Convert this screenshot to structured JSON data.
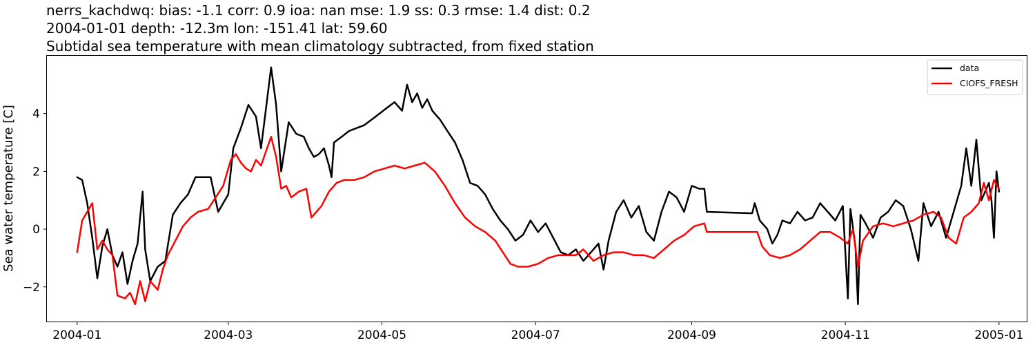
{
  "chart_data": {
    "type": "line",
    "title_lines": [
      "nerrs_kachdwq: bias: -1.1  corr: 0.9  ioa: nan  mse: 1.9  ss: 0.3  rmse: 1.4  dist: 0.2",
      "2004-01-01 depth: -12.3m lon: -151.41 lat: 59.60",
      "Subtidal sea temperature with mean climatology subtracted, from fixed station"
    ],
    "xlabel": "",
    "ylabel": "Sea water temperature [C]",
    "xlim": [
      "2003-12-20",
      "2005-01-12"
    ],
    "ylim": [
      -3.2,
      6.0
    ],
    "x_ticks": [
      "2004-01",
      "2004-03",
      "2004-05",
      "2004-07",
      "2004-09",
      "2004-11",
      "2005-01"
    ],
    "y_ticks": [
      -2,
      0,
      2,
      4
    ],
    "y_tick_labels": [
      "−2",
      "0",
      "2",
      "4"
    ],
    "grid": false,
    "legend_position": "top-right",
    "series": [
      {
        "name": "data",
        "color": "#000000",
        "points": [
          [
            "2004-01-01",
            1.8
          ],
          [
            "2004-01-03",
            1.7
          ],
          [
            "2004-01-05",
            0.9
          ],
          [
            "2004-01-07",
            -0.3
          ],
          [
            "2004-01-09",
            -1.7
          ],
          [
            "2004-01-11",
            -0.6
          ],
          [
            "2004-01-13",
            0.0
          ],
          [
            "2004-01-15",
            -0.9
          ],
          [
            "2004-01-17",
            -1.3
          ],
          [
            "2004-01-19",
            -0.8
          ],
          [
            "2004-01-21",
            -1.9
          ],
          [
            "2004-01-23",
            -1.1
          ],
          [
            "2004-01-25",
            -0.5
          ],
          [
            "2004-01-27",
            1.3
          ],
          [
            "2004-01-28",
            -0.7
          ],
          [
            "2004-01-30",
            -1.8
          ],
          [
            "2004-02-02",
            -1.3
          ],
          [
            "2004-02-05",
            -1.1
          ],
          [
            "2004-02-08",
            0.5
          ],
          [
            "2004-02-11",
            0.9
          ],
          [
            "2004-02-14",
            1.2
          ],
          [
            "2004-02-17",
            1.8
          ],
          [
            "2004-02-20",
            1.8
          ],
          [
            "2004-02-23",
            1.8
          ],
          [
            "2004-02-26",
            0.6
          ],
          [
            "2004-03-01",
            1.2
          ],
          [
            "2004-03-03",
            2.8
          ],
          [
            "2004-03-06",
            3.5
          ],
          [
            "2004-03-09",
            4.3
          ],
          [
            "2004-03-12",
            3.9
          ],
          [
            "2004-03-14",
            2.8
          ],
          [
            "2004-03-16",
            4.2
          ],
          [
            "2004-03-18",
            5.6
          ],
          [
            "2004-03-20",
            4.3
          ],
          [
            "2004-03-22",
            2.0
          ],
          [
            "2004-03-25",
            3.7
          ],
          [
            "2004-03-28",
            3.3
          ],
          [
            "2004-03-31",
            3.2
          ],
          [
            "2004-04-02",
            2.8
          ],
          [
            "2004-04-04",
            2.5
          ],
          [
            "2004-04-06",
            2.6
          ],
          [
            "2004-04-08",
            2.8
          ],
          [
            "2004-04-10",
            2.2
          ],
          [
            "2004-04-11",
            1.8
          ],
          [
            "2004-04-12",
            3.0
          ],
          [
            "2004-04-15",
            3.2
          ],
          [
            "2004-04-18",
            3.4
          ],
          [
            "2004-04-21",
            3.5
          ],
          [
            "2004-04-24",
            3.6
          ],
          [
            "2004-04-27",
            3.8
          ],
          [
            "2004-04-30",
            4.0
          ],
          [
            "2004-05-03",
            4.2
          ],
          [
            "2004-05-06",
            4.4
          ],
          [
            "2004-05-09",
            4.1
          ],
          [
            "2004-05-11",
            5.0
          ],
          [
            "2004-05-13",
            4.4
          ],
          [
            "2004-05-15",
            4.7
          ],
          [
            "2004-05-17",
            4.2
          ],
          [
            "2004-05-19",
            4.5
          ],
          [
            "2004-05-21",
            4.1
          ],
          [
            "2004-05-24",
            3.8
          ],
          [
            "2004-05-27",
            3.4
          ],
          [
            "2004-05-30",
            3.0
          ],
          [
            "2004-06-02",
            2.4
          ],
          [
            "2004-06-05",
            1.6
          ],
          [
            "2004-06-08",
            1.5
          ],
          [
            "2004-06-11",
            1.2
          ],
          [
            "2004-06-14",
            0.7
          ],
          [
            "2004-06-17",
            0.3
          ],
          [
            "2004-06-20",
            0.0
          ],
          [
            "2004-06-23",
            -0.4
          ],
          [
            "2004-06-26",
            -0.2
          ],
          [
            "2004-06-29",
            0.3
          ],
          [
            "2004-07-02",
            -0.1
          ],
          [
            "2004-07-05",
            0.2
          ],
          [
            "2004-07-08",
            -0.3
          ],
          [
            "2004-07-11",
            -0.8
          ],
          [
            "2004-07-14",
            -0.9
          ],
          [
            "2004-07-17",
            -0.7
          ],
          [
            "2004-07-20",
            -1.1
          ],
          [
            "2004-07-23",
            -0.8
          ],
          [
            "2004-07-26",
            -0.5
          ],
          [
            "2004-07-28",
            -1.4
          ],
          [
            "2004-07-30",
            -0.4
          ],
          [
            "2004-08-02",
            0.6
          ],
          [
            "2004-08-05",
            1.0
          ],
          [
            "2004-08-08",
            0.4
          ],
          [
            "2004-08-11",
            0.8
          ],
          [
            "2004-08-14",
            -0.1
          ],
          [
            "2004-08-17",
            -0.4
          ],
          [
            "2004-08-20",
            0.6
          ],
          [
            "2004-08-23",
            1.3
          ],
          [
            "2004-08-26",
            1.1
          ],
          [
            "2004-08-29",
            0.6
          ],
          [
            "2004-09-01",
            1.5
          ],
          [
            "2004-09-04",
            1.4
          ],
          [
            "2004-09-06",
            1.4
          ],
          [
            "2004-09-07",
            0.6
          ],
          [
            "2004-09-25",
            0.55
          ],
          [
            "2004-09-26",
            0.9
          ],
          [
            "2004-09-28",
            0.3
          ],
          [
            "2004-10-01",
            0.0
          ],
          [
            "2004-10-03",
            -0.5
          ],
          [
            "2004-10-05",
            -0.2
          ],
          [
            "2004-10-07",
            0.3
          ],
          [
            "2004-10-10",
            0.2
          ],
          [
            "2004-10-13",
            0.6
          ],
          [
            "2004-10-16",
            0.3
          ],
          [
            "2004-10-19",
            0.4
          ],
          [
            "2004-10-22",
            0.9
          ],
          [
            "2004-10-25",
            0.6
          ],
          [
            "2004-10-28",
            0.3
          ],
          [
            "2004-10-31",
            0.8
          ],
          [
            "2004-11-02",
            -2.4
          ],
          [
            "2004-11-03",
            0.7
          ],
          [
            "2004-11-05",
            -0.6
          ],
          [
            "2004-11-06",
            -2.6
          ],
          [
            "2004-11-07",
            0.5
          ],
          [
            "2004-11-09",
            0.2
          ],
          [
            "2004-11-12",
            -0.3
          ],
          [
            "2004-11-15",
            0.4
          ],
          [
            "2004-11-18",
            0.6
          ],
          [
            "2004-11-21",
            1.0
          ],
          [
            "2004-11-24",
            0.8
          ],
          [
            "2004-11-27",
            0.0
          ],
          [
            "2004-11-30",
            -1.1
          ],
          [
            "2004-12-02",
            0.9
          ],
          [
            "2004-12-05",
            0.1
          ],
          [
            "2004-12-08",
            0.6
          ],
          [
            "2004-12-11",
            -0.3
          ],
          [
            "2004-12-14",
            0.6
          ],
          [
            "2004-12-17",
            1.5
          ],
          [
            "2004-12-19",
            2.8
          ],
          [
            "2004-12-21",
            1.5
          ],
          [
            "2004-12-23",
            3.1
          ],
          [
            "2004-12-25",
            1.0
          ],
          [
            "2004-12-28",
            1.6
          ],
          [
            "2004-12-29",
            1.0
          ],
          [
            "2004-12-30",
            -0.3
          ],
          [
            "2004-12-31",
            2.0
          ],
          [
            "2005-01-01",
            1.3
          ]
        ]
      },
      {
        "name": "CIOFS_FRESH",
        "color": "#ff0000",
        "points": [
          [
            "2004-01-01",
            -0.8
          ],
          [
            "2004-01-03",
            0.3
          ],
          [
            "2004-01-05",
            0.6
          ],
          [
            "2004-01-07",
            0.9
          ],
          [
            "2004-01-09",
            -0.7
          ],
          [
            "2004-01-11",
            -0.4
          ],
          [
            "2004-01-13",
            -0.7
          ],
          [
            "2004-01-15",
            -0.9
          ],
          [
            "2004-01-17",
            -2.3
          ],
          [
            "2004-01-20",
            -2.4
          ],
          [
            "2004-01-22",
            -2.2
          ],
          [
            "2004-01-24",
            -2.6
          ],
          [
            "2004-01-26",
            -1.8
          ],
          [
            "2004-01-28",
            -2.5
          ],
          [
            "2004-01-30",
            -1.8
          ],
          [
            "2004-02-02",
            -2.1
          ],
          [
            "2004-02-04",
            -1.4
          ],
          [
            "2004-02-06",
            -0.9
          ],
          [
            "2004-02-09",
            -0.4
          ],
          [
            "2004-02-12",
            0.1
          ],
          [
            "2004-02-15",
            0.4
          ],
          [
            "2004-02-18",
            0.6
          ],
          [
            "2004-02-22",
            0.7
          ],
          [
            "2004-02-25",
            1.1
          ],
          [
            "2004-02-28",
            1.5
          ],
          [
            "2004-03-02",
            2.4
          ],
          [
            "2004-03-04",
            2.6
          ],
          [
            "2004-03-06",
            2.3
          ],
          [
            "2004-03-08",
            2.1
          ],
          [
            "2004-03-10",
            2.0
          ],
          [
            "2004-03-12",
            2.4
          ],
          [
            "2004-03-14",
            2.2
          ],
          [
            "2004-03-16",
            2.7
          ],
          [
            "2004-03-18",
            3.2
          ],
          [
            "2004-03-20",
            2.5
          ],
          [
            "2004-03-22",
            1.4
          ],
          [
            "2004-03-24",
            1.5
          ],
          [
            "2004-03-26",
            1.1
          ],
          [
            "2004-03-29",
            1.3
          ],
          [
            "2004-04-01",
            1.4
          ],
          [
            "2004-04-03",
            0.4
          ],
          [
            "2004-04-05",
            0.6
          ],
          [
            "2004-04-07",
            0.8
          ],
          [
            "2004-04-10",
            1.3
          ],
          [
            "2004-04-13",
            1.6
          ],
          [
            "2004-04-16",
            1.7
          ],
          [
            "2004-04-20",
            1.7
          ],
          [
            "2004-04-24",
            1.8
          ],
          [
            "2004-04-28",
            2.0
          ],
          [
            "2004-05-02",
            2.1
          ],
          [
            "2004-05-06",
            2.2
          ],
          [
            "2004-05-10",
            2.1
          ],
          [
            "2004-05-14",
            2.2
          ],
          [
            "2004-05-18",
            2.3
          ],
          [
            "2004-05-22",
            2.0
          ],
          [
            "2004-05-26",
            1.5
          ],
          [
            "2004-05-30",
            0.9
          ],
          [
            "2004-06-03",
            0.4
          ],
          [
            "2004-06-07",
            0.1
          ],
          [
            "2004-06-11",
            -0.1
          ],
          [
            "2004-06-15",
            -0.4
          ],
          [
            "2004-06-18",
            -0.8
          ],
          [
            "2004-06-21",
            -1.2
          ],
          [
            "2004-06-24",
            -1.3
          ],
          [
            "2004-06-28",
            -1.3
          ],
          [
            "2004-07-02",
            -1.2
          ],
          [
            "2004-07-06",
            -1.0
          ],
          [
            "2004-07-10",
            -0.9
          ],
          [
            "2004-07-14",
            -0.9
          ],
          [
            "2004-07-17",
            -0.9
          ],
          [
            "2004-07-20",
            -0.7
          ],
          [
            "2004-07-24",
            -1.1
          ],
          [
            "2004-07-28",
            -0.9
          ],
          [
            "2004-08-01",
            -0.8
          ],
          [
            "2004-08-05",
            -0.8
          ],
          [
            "2004-08-09",
            -0.9
          ],
          [
            "2004-08-13",
            -0.9
          ],
          [
            "2004-08-17",
            -1.0
          ],
          [
            "2004-08-21",
            -0.7
          ],
          [
            "2004-08-25",
            -0.4
          ],
          [
            "2004-08-29",
            -0.2
          ],
          [
            "2004-09-02",
            0.1
          ],
          [
            "2004-09-06",
            0.2
          ],
          [
            "2004-09-07",
            -0.1
          ],
          [
            "2004-09-27",
            -0.1
          ],
          [
            "2004-09-29",
            -0.6
          ],
          [
            "2004-10-02",
            -0.9
          ],
          [
            "2004-10-06",
            -1.0
          ],
          [
            "2004-10-10",
            -0.9
          ],
          [
            "2004-10-14",
            -0.7
          ],
          [
            "2004-10-18",
            -0.4
          ],
          [
            "2004-10-22",
            -0.1
          ],
          [
            "2004-10-26",
            -0.1
          ],
          [
            "2004-10-30",
            -0.3
          ],
          [
            "2004-11-02",
            -0.5
          ],
          [
            "2004-11-04",
            0.0
          ],
          [
            "2004-11-06",
            -1.3
          ],
          [
            "2004-11-08",
            -0.4
          ],
          [
            "2004-11-12",
            0.1
          ],
          [
            "2004-11-16",
            0.2
          ],
          [
            "2004-11-20",
            0.1
          ],
          [
            "2004-11-24",
            0.2
          ],
          [
            "2004-11-28",
            0.3
          ],
          [
            "2004-12-02",
            0.5
          ],
          [
            "2004-12-06",
            0.6
          ],
          [
            "2004-12-09",
            0.4
          ],
          [
            "2004-12-12",
            -0.3
          ],
          [
            "2004-12-15",
            -0.5
          ],
          [
            "2004-12-18",
            0.4
          ],
          [
            "2004-12-21",
            0.6
          ],
          [
            "2004-12-24",
            0.9
          ],
          [
            "2004-12-26",
            1.6
          ],
          [
            "2004-12-28",
            1.0
          ],
          [
            "2004-12-30",
            1.7
          ],
          [
            "2005-01-01",
            1.4
          ]
        ]
      }
    ]
  }
}
